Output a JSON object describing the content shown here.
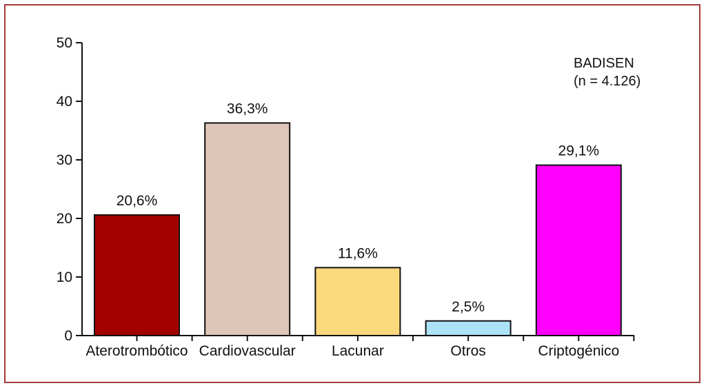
{
  "chart_data": {
    "type": "bar",
    "categories": [
      "Aterotrombótico",
      "Cardiovascular",
      "Lacunar",
      "Otros",
      "Criptogénico"
    ],
    "values": [
      20.6,
      36.3,
      11.6,
      2.5,
      29.1
    ],
    "value_labels": [
      "20,6%",
      "36,3%",
      "11,6%",
      "2,5%",
      "29,1%"
    ],
    "colors": [
      "#a30000",
      "#e0c6b8",
      "#fdd97e",
      "#aee2f7",
      "#ff00ff"
    ],
    "yticks": [
      "0",
      "10",
      "20",
      "30",
      "40",
      "50"
    ],
    "ylim": [
      0,
      50
    ],
    "grid": false,
    "annotation": {
      "line1": "BADISEN",
      "line2": "(n = 4.126)"
    }
  }
}
